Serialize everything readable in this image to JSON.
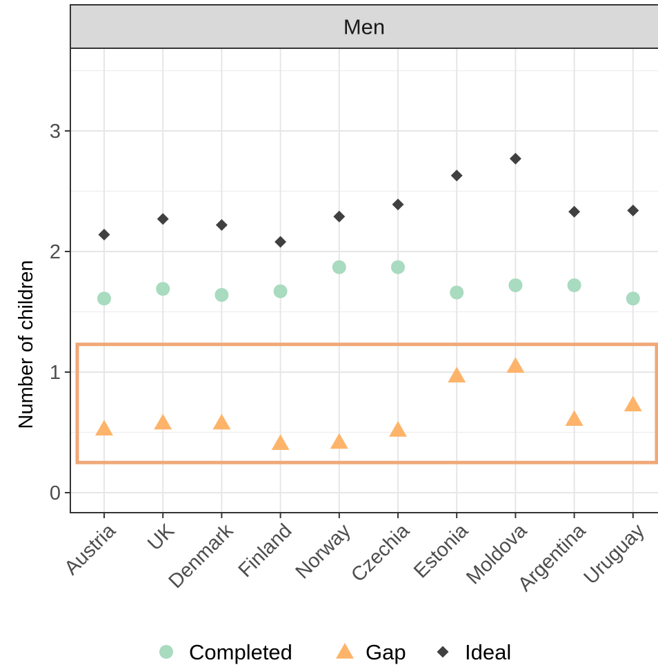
{
  "chart_data": {
    "type": "scatter",
    "panel_title": "Men",
    "ylabel": "Number of children",
    "xlabel": "",
    "ylim": [
      -0.15,
      3.5
    ],
    "yticks": [
      0,
      1,
      2,
      3
    ],
    "grid": true,
    "categories": [
      "Austria",
      "UK",
      "Denmark",
      "Finland",
      "Norway",
      "Czechia",
      "Estonia",
      "Moldova",
      "Argentina",
      "Uruguay"
    ],
    "series": [
      {
        "name": "Completed",
        "shape": "circle",
        "color": "#a8dbbf",
        "values": [
          1.61,
          1.69,
          1.64,
          1.67,
          1.87,
          1.87,
          1.66,
          1.72,
          1.72,
          1.61
        ]
      },
      {
        "name": "Gap",
        "shape": "triangle",
        "color": "#fdb46a",
        "values": [
          0.53,
          0.58,
          0.58,
          0.41,
          0.42,
          0.52,
          0.97,
          1.05,
          0.61,
          0.73
        ]
      },
      {
        "name": "Ideal",
        "shape": "diamond",
        "color": "#404040",
        "values": [
          2.14,
          2.27,
          2.22,
          2.08,
          2.29,
          2.39,
          2.63,
          2.77,
          2.33,
          2.34
        ]
      }
    ],
    "legend_position": "bottom",
    "highlight": {
      "ymin": 0.25,
      "ymax": 1.23,
      "color": "#f0a878"
    }
  }
}
